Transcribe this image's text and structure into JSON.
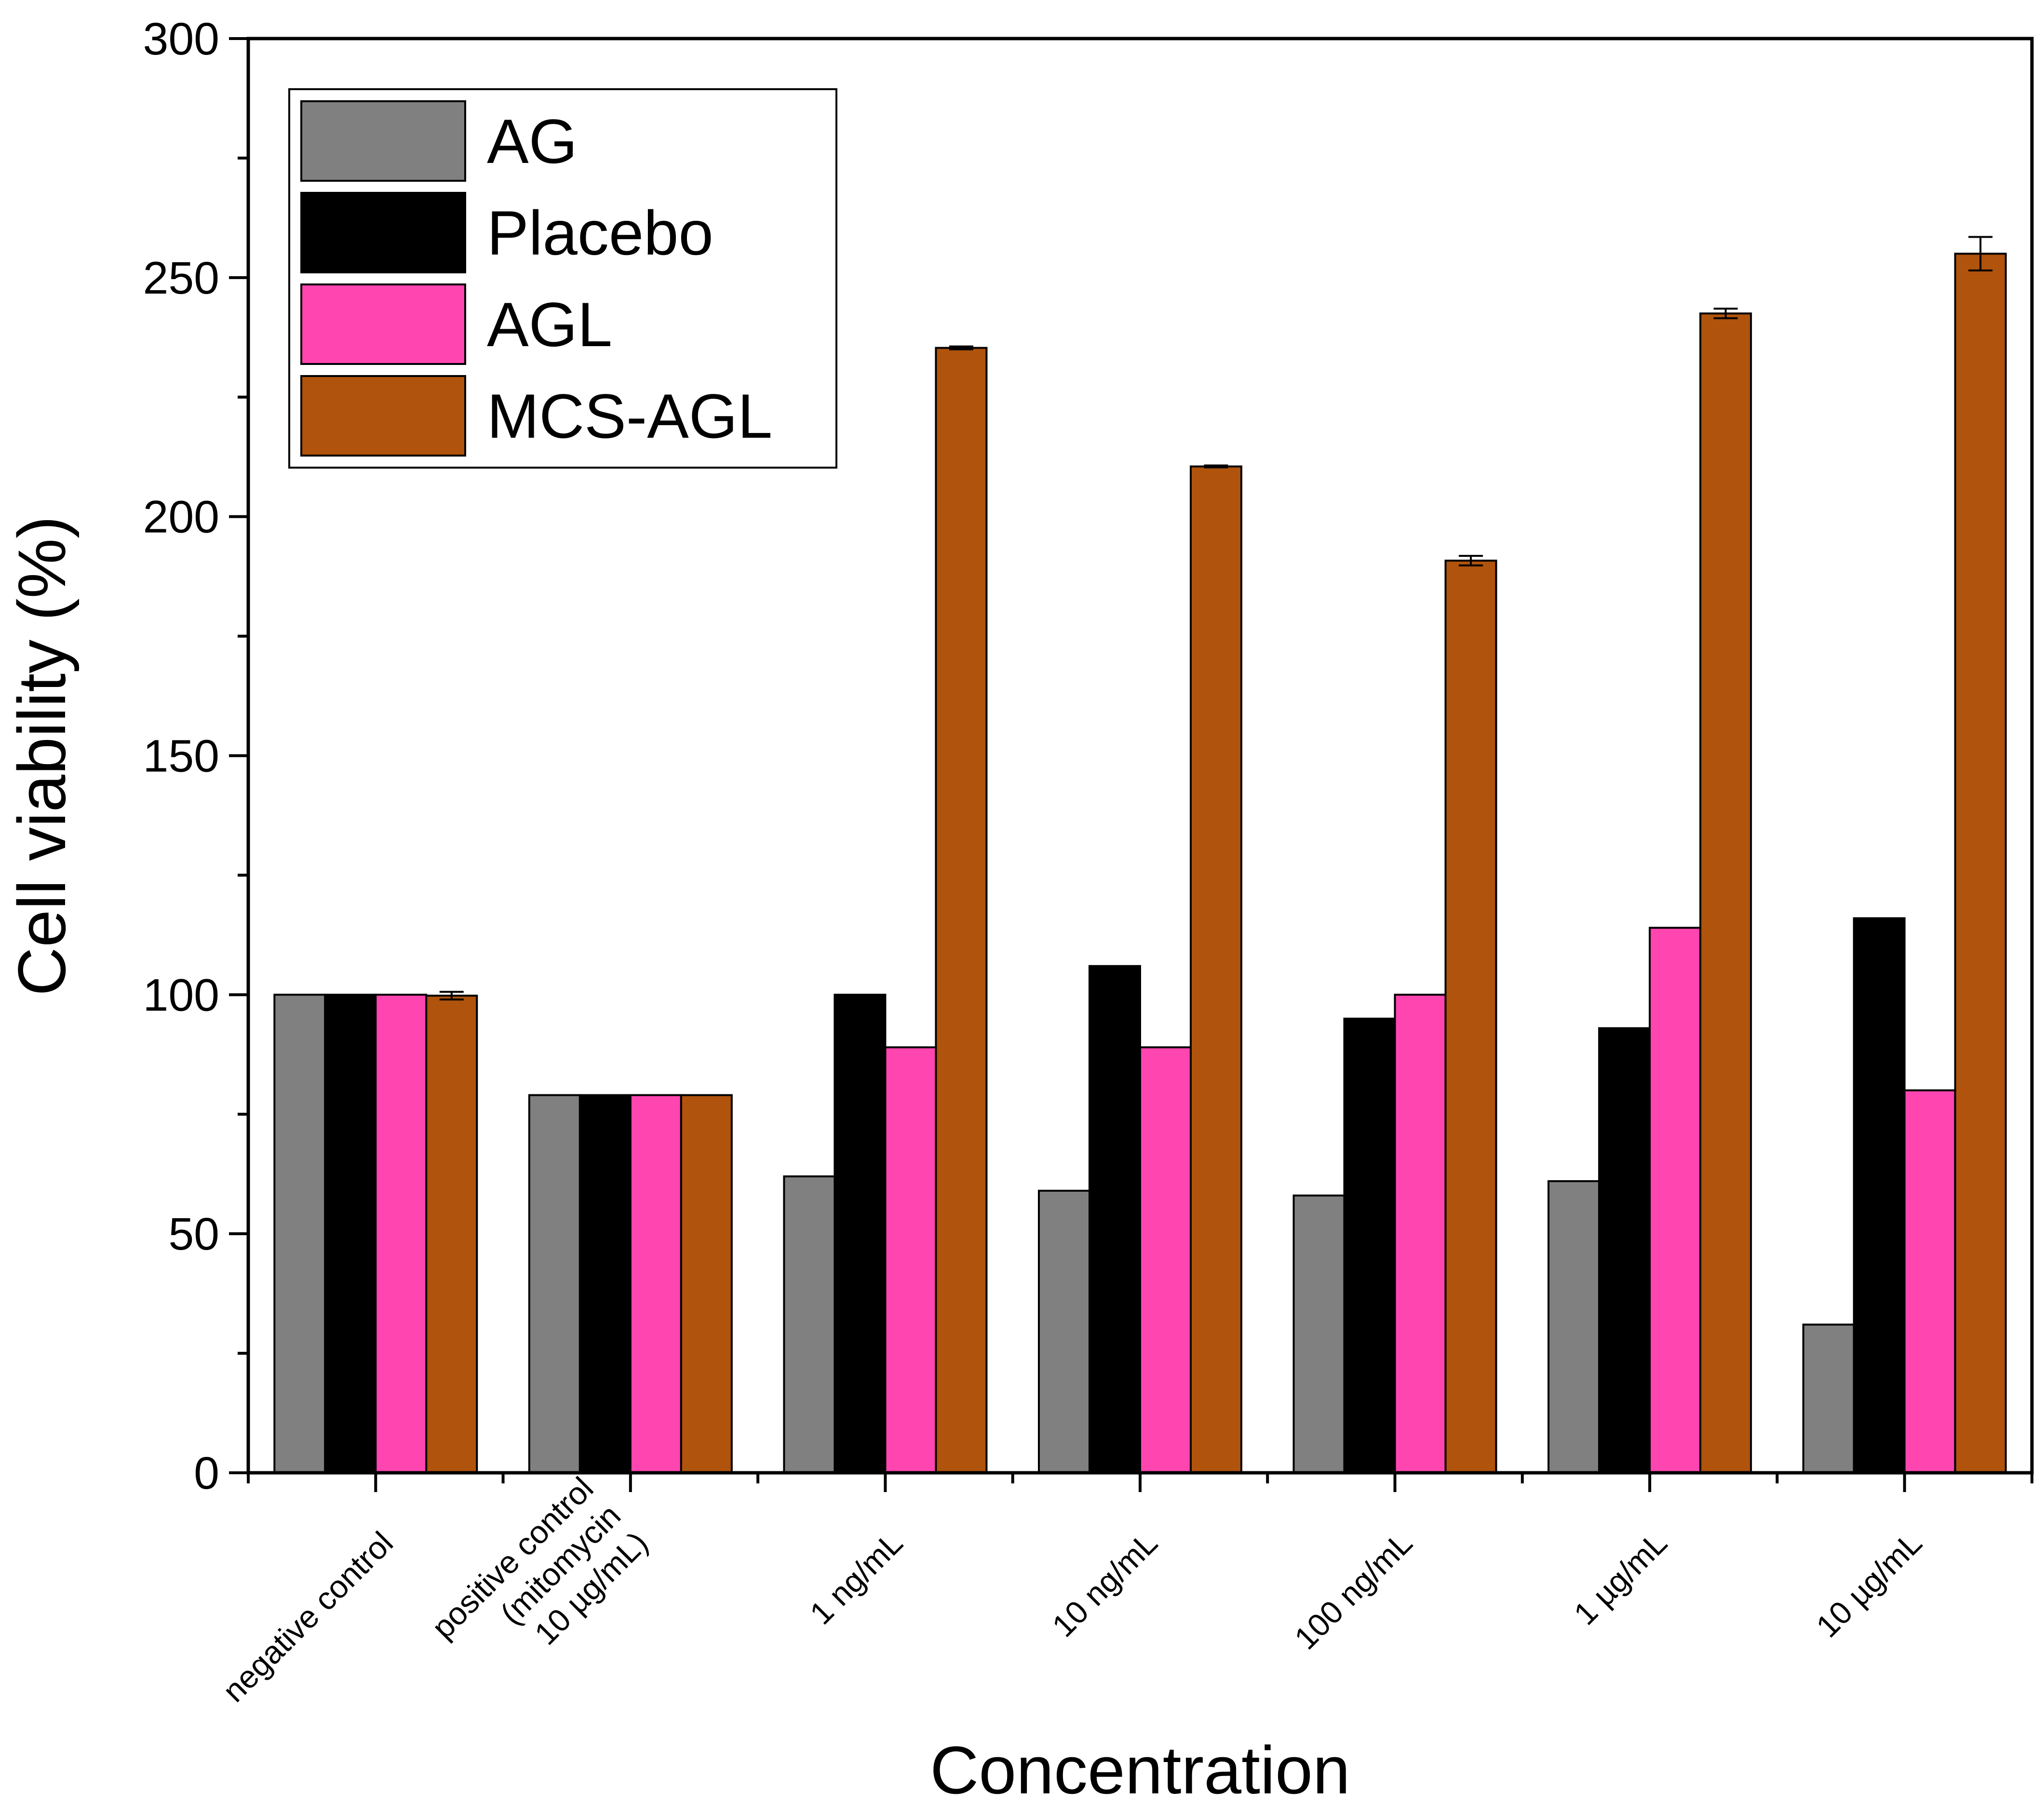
{
  "chart_data": {
    "type": "bar",
    "title": "",
    "xlabel": "Concentration",
    "ylabel": "Cell viability (%)",
    "ylim": [
      0,
      300
    ],
    "yticks": [
      0,
      50,
      100,
      150,
      200,
      250,
      300
    ],
    "grid": false,
    "legend_position": "top-left",
    "categories": [
      [
        "negative control"
      ],
      [
        "positive control",
        "(mitomycin",
        "10 µg/mL)"
      ],
      [
        "1 ng/mL"
      ],
      [
        "10 ng/mL"
      ],
      [
        "100 ng/mL"
      ],
      [
        "1 µg/mL"
      ],
      [
        "10 µg/mL"
      ]
    ],
    "series": [
      {
        "name": "AG",
        "color": "#808080",
        "values": [
          100,
          79,
          62,
          59,
          58,
          61,
          31
        ],
        "errors": [
          0,
          0,
          0,
          0,
          0,
          0,
          0
        ]
      },
      {
        "name": "Placebo",
        "color": "#000000",
        "values": [
          100,
          79,
          100,
          106,
          95,
          93,
          116
        ],
        "errors": [
          0,
          0,
          0,
          0,
          0,
          0,
          0
        ]
      },
      {
        "name": "AGL",
        "color": "#ff45b0",
        "values": [
          100,
          79,
          89,
          89,
          100,
          114,
          80
        ],
        "errors": [
          0,
          0,
          0,
          0,
          0,
          0,
          0
        ]
      },
      {
        "name": "MCS-AGL",
        "color": "#b0530c",
        "values": [
          99.8,
          79,
          235.3,
          210.5,
          190.8,
          242.5,
          255
        ],
        "errors": [
          0.8,
          0,
          0.3,
          0.2,
          1,
          1,
          3.5
        ]
      }
    ]
  }
}
